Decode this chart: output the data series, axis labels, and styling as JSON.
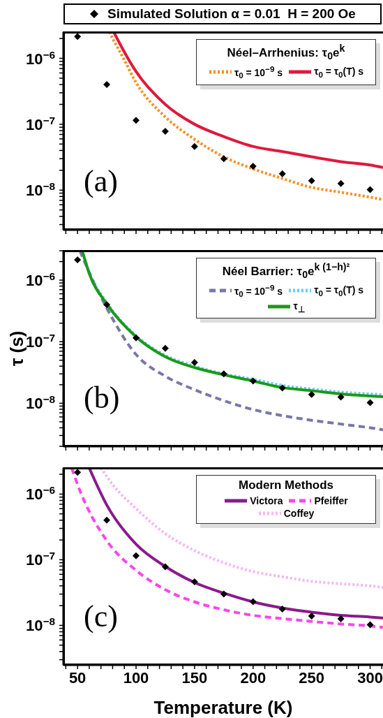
{
  "chart_data": [
    {
      "type": "line",
      "legend_title": "Néel–Arrhenius: τ$_{0}$e$^{k}$",
      "legend": "top right",
      "log": "y",
      "tick_labels": "y",
      "annotations": [
        "(a)"
      ],
      "xlim": [
        38,
        311
      ],
      "xticks": [
        {
          "value": 40,
          "label": null
        },
        50,
        {
          "value": 60,
          "label": null
        },
        {
          "value": 70,
          "label": null
        },
        {
          "value": 80,
          "label": null
        },
        {
          "value": 90,
          "label": null
        },
        100,
        {
          "value": 110,
          "label": null
        },
        {
          "value": 120,
          "label": null
        },
        {
          "value": 130,
          "label": null
        },
        {
          "value": 140,
          "label": null
        },
        150,
        {
          "value": 160,
          "label": null
        },
        {
          "value": 170,
          "label": null
        },
        {
          "value": 180,
          "label": null
        },
        {
          "value": 190,
          "label": null
        },
        200,
        {
          "value": 210,
          "label": null
        },
        {
          "value": 220,
          "label": null
        },
        {
          "value": 230,
          "label": null
        },
        {
          "value": 240,
          "label": null
        },
        250,
        {
          "value": 260,
          "label": null
        },
        {
          "value": 270,
          "label": null
        },
        {
          "value": 280,
          "label": null
        },
        {
          "value": 290,
          "label": null
        },
        300,
        {
          "value": 310,
          "label": null
        }
      ],
      "ylim": [
        2.5e-09,
        2.5e-06
      ],
      "yticks": [
        {
          "value": 3e-09,
          "label": null
        },
        {
          "value": 4e-09,
          "label": null
        },
        {
          "value": 5e-09,
          "label": null
        },
        {
          "value": 6e-09,
          "label": null
        },
        {
          "value": 7e-09,
          "label": null
        },
        {
          "value": 8e-09,
          "label": null
        },
        {
          "value": 9e-09,
          "label": null
        },
        {
          "value": 1e-08,
          "label": "10$^{−8}$"
        },
        {
          "value": 2e-08,
          "label": null
        },
        {
          "value": 3e-08,
          "label": null
        },
        {
          "value": 4e-08,
          "label": null
        },
        {
          "value": 5e-08,
          "label": null
        },
        {
          "value": 6e-08,
          "label": null
        },
        {
          "value": 7e-08,
          "label": null
        },
        {
          "value": 8e-08,
          "label": null
        },
        {
          "value": 9e-08,
          "label": null
        },
        {
          "value": 1e-07,
          "label": "10$^{−7}$"
        },
        {
          "value": 2e-07,
          "label": null
        },
        {
          "value": 3e-07,
          "label": null
        },
        {
          "value": 4e-07,
          "label": null
        },
        {
          "value": 5e-07,
          "label": null
        },
        {
          "value": 6e-07,
          "label": null
        },
        {
          "value": 7e-07,
          "label": null
        },
        {
          "value": 8e-07,
          "label": null
        },
        {
          "value": 9e-07,
          "label": null
        },
        {
          "value": 1e-06,
          "label": "10$^{−6}$"
        },
        {
          "value": 2e-06,
          "label": null
        }
      ],
      "series": [
        {
          "name": "τ$_{0}$ = 10$^{−9}$ s",
          "color": "#ff8c1a",
          "line_style": "dotted",
          "x": [
            77,
            90,
            100,
            125,
            150,
            175,
            200,
            225,
            250,
            275,
            300,
            311
          ],
          "values": [
            2.5e-06,
            9.4e-07,
            4.3e-07,
            1.29e-07,
            5.9e-08,
            3.2e-08,
            2.1e-08,
            1.5e-08,
            1.1e-08,
            9.3e-09,
            7.8e-09,
            7.2e-09
          ]
        },
        {
          "name": "τ$_{0}$ = τ$_{0}$(T) s",
          "color": "#e0183c",
          "line_style": "solid",
          "x": [
            81,
            90,
            100,
            125,
            150,
            175,
            200,
            225,
            250,
            275,
            300,
            311
          ],
          "values": [
            2.5e-06,
            1.25e-06,
            6.3e-07,
            2e-07,
            1e-07,
            6.5e-08,
            4.6e-08,
            3.85e-08,
            3.2e-08,
            2.7e-08,
            2.4e-08,
            2.2e-08
          ]
        },
        {
          "type": "scatter",
          "name": "Simulated Solution α = 0.01  H = 200 Oe",
          "color": "#000000",
          "marker": "diamond",
          "x": [
            50,
            75,
            100,
            125,
            150,
            175,
            200,
            225,
            250,
            275,
            300
          ],
          "values": [
            2.14e-06,
            4e-07,
            1.15e-07,
            7.8e-08,
            4.6e-08,
            3e-08,
            2.3e-08,
            1.77e-08,
            1.39e-08,
            1.26e-08,
            1.02e-08
          ]
        }
      ]
    },
    {
      "type": "line",
      "legend_title": "Néel Barrier: τ$_{0}$e$^{k (1−h)²}$",
      "legend": "top right",
      "log": "y",
      "tick_labels": "y",
      "ylabel": "τ  (s)",
      "annotations": [
        "(b)"
      ],
      "xlim": [
        38,
        311
      ],
      "xticks": [
        {
          "value": 40,
          "label": null
        },
        50,
        {
          "value": 60,
          "label": null
        },
        {
          "value": 70,
          "label": null
        },
        {
          "value": 80,
          "label": null
        },
        {
          "value": 90,
          "label": null
        },
        100,
        {
          "value": 110,
          "label": null
        },
        {
          "value": 120,
          "label": null
        },
        {
          "value": 130,
          "label": null
        },
        {
          "value": 140,
          "label": null
        },
        150,
        {
          "value": 160,
          "label": null
        },
        {
          "value": 170,
          "label": null
        },
        {
          "value": 180,
          "label": null
        },
        {
          "value": 190,
          "label": null
        },
        200,
        {
          "value": 210,
          "label": null
        },
        {
          "value": 220,
          "label": null
        },
        {
          "value": 230,
          "label": null
        },
        {
          "value": 240,
          "label": null
        },
        250,
        {
          "value": 260,
          "label": null
        },
        {
          "value": 270,
          "label": null
        },
        {
          "value": 280,
          "label": null
        },
        {
          "value": 290,
          "label": null
        },
        300,
        {
          "value": 310,
          "label": null
        }
      ],
      "ylim": [
        2e-09,
        3e-06
      ],
      "yticks": [
        {
          "value": 2e-09,
          "label": null
        },
        {
          "value": 3e-09,
          "label": null
        },
        {
          "value": 4e-09,
          "label": null
        },
        {
          "value": 5e-09,
          "label": null
        },
        {
          "value": 6e-09,
          "label": null
        },
        {
          "value": 7e-09,
          "label": null
        },
        {
          "value": 8e-09,
          "label": null
        },
        {
          "value": 9e-09,
          "label": null
        },
        {
          "value": 1e-08,
          "label": "10$^{−8}$"
        },
        {
          "value": 2e-08,
          "label": null
        },
        {
          "value": 3e-08,
          "label": null
        },
        {
          "value": 4e-08,
          "label": null
        },
        {
          "value": 5e-08,
          "label": null
        },
        {
          "value": 6e-08,
          "label": null
        },
        {
          "value": 7e-08,
          "label": null
        },
        {
          "value": 8e-08,
          "label": null
        },
        {
          "value": 9e-08,
          "label": null
        },
        {
          "value": 1e-07,
          "label": "10$^{−7}$"
        },
        {
          "value": 2e-07,
          "label": null
        },
        {
          "value": 3e-07,
          "label": null
        },
        {
          "value": 4e-07,
          "label": null
        },
        {
          "value": 5e-07,
          "label": null
        },
        {
          "value": 6e-07,
          "label": null
        },
        {
          "value": 7e-07,
          "label": null
        },
        {
          "value": 8e-07,
          "label": null
        },
        {
          "value": 9e-07,
          "label": null
        },
        {
          "value": 1e-06,
          "label": "10$^{−6}$"
        },
        {
          "value": 2e-06,
          "label": null
        },
        {
          "value": 3e-06,
          "label": null
        }
      ],
      "series": [
        {
          "name": "τ$_{0}$ = 10$^{−9}$ s",
          "color": "#7878a8",
          "line_style": "dashed",
          "x": [
            52,
            60,
            75,
            100,
            125,
            150,
            175,
            200,
            225,
            250,
            275,
            300,
            311
          ],
          "values": [
            3e-06,
            1.34e-06,
            3.5e-07,
            6.2e-08,
            2.75e-08,
            1.66e-08,
            1.1e-08,
            7.9e-09,
            6.3e-09,
            5.3e-09,
            4.6e-09,
            4e-09,
            3.7e-09
          ]
        },
        {
          "name": "τ$_{0}$ = τ$_{0}$(T) s",
          "color": "#66ccff",
          "line_style": "dotted",
          "x": [
            54,
            60,
            75,
            100,
            125,
            150,
            175,
            200,
            225,
            250,
            275,
            300,
            311
          ],
          "values": [
            3e-06,
            1.35e-06,
            4.3e-07,
            1.25e-07,
            6e-08,
            4e-08,
            3e-08,
            2.45e-08,
            1.95e-08,
            1.7e-08,
            1.52e-08,
            1.42e-08,
            1.38e-08
          ]
        },
        {
          "name": "τ$_{⊥}$",
          "color": "#1a9a1a",
          "line_style": "solid",
          "x": [
            54,
            60,
            75,
            100,
            125,
            150,
            175,
            200,
            225,
            250,
            275,
            300,
            311
          ],
          "values": [
            3e-06,
            1.28e-06,
            4.1e-07,
            1.2e-07,
            5.7e-08,
            3.8e-08,
            2.9e-08,
            2.3e-08,
            1.8e-08,
            1.6e-08,
            1.42e-08,
            1.31e-08,
            1.28e-08
          ]
        },
        {
          "type": "scatter",
          "color": "#000000",
          "marker": "diamond",
          "x": [
            50,
            75,
            100,
            125,
            150,
            175,
            200,
            225,
            250,
            275,
            300
          ],
          "values": [
            2.14e-06,
            4e-07,
            1.15e-07,
            7.8e-08,
            4.6e-08,
            3e-08,
            2.3e-08,
            1.77e-08,
            1.39e-08,
            1.26e-08,
            1.02e-08
          ]
        }
      ]
    },
    {
      "type": "line",
      "legend_title": "Modern Methods",
      "legend": "top right",
      "log": "y",
      "xlabel": "Temperature (K)",
      "annotations": [
        "(c)"
      ],
      "xlim": [
        38,
        311
      ],
      "xticks": [
        {
          "value": 40,
          "label": null
        },
        50,
        {
          "value": 60,
          "label": null
        },
        {
          "value": 70,
          "label": null
        },
        {
          "value": 80,
          "label": null
        },
        {
          "value": 90,
          "label": null
        },
        100,
        {
          "value": 110,
          "label": null
        },
        {
          "value": 120,
          "label": null
        },
        {
          "value": 130,
          "label": null
        },
        {
          "value": 140,
          "label": null
        },
        150,
        {
          "value": 160,
          "label": null
        },
        {
          "value": 170,
          "label": null
        },
        {
          "value": 180,
          "label": null
        },
        {
          "value": 190,
          "label": null
        },
        200,
        {
          "value": 210,
          "label": null
        },
        {
          "value": 220,
          "label": null
        },
        {
          "value": 230,
          "label": null
        },
        {
          "value": 240,
          "label": null
        },
        250,
        {
          "value": 260,
          "label": null
        },
        {
          "value": 270,
          "label": null
        },
        {
          "value": 280,
          "label": null
        },
        {
          "value": 290,
          "label": null
        },
        300,
        {
          "value": 310,
          "label": null
        }
      ],
      "ylim": [
        2.5e-09,
        2.5e-06
      ],
      "yticks": [
        {
          "value": 3e-09,
          "label": null
        },
        {
          "value": 4e-09,
          "label": null
        },
        {
          "value": 5e-09,
          "label": null
        },
        {
          "value": 6e-09,
          "label": null
        },
        {
          "value": 7e-09,
          "label": null
        },
        {
          "value": 8e-09,
          "label": null
        },
        {
          "value": 9e-09,
          "label": null
        },
        {
          "value": 1e-08,
          "label": "10$^{−8}$"
        },
        {
          "value": 2e-08,
          "label": null
        },
        {
          "value": 3e-08,
          "label": null
        },
        {
          "value": 4e-08,
          "label": null
        },
        {
          "value": 5e-08,
          "label": null
        },
        {
          "value": 6e-08,
          "label": null
        },
        {
          "value": 7e-08,
          "label": null
        },
        {
          "value": 8e-08,
          "label": null
        },
        {
          "value": 9e-08,
          "label": null
        },
        {
          "value": 1e-07,
          "label": "10$^{−7}$"
        },
        {
          "value": 2e-07,
          "label": null
        },
        {
          "value": 3e-07,
          "label": null
        },
        {
          "value": 4e-07,
          "label": null
        },
        {
          "value": 5e-07,
          "label": null
        },
        {
          "value": 6e-07,
          "label": null
        },
        {
          "value": 7e-07,
          "label": null
        },
        {
          "value": 8e-07,
          "label": null
        },
        {
          "value": 9e-07,
          "label": null
        },
        {
          "value": 1e-06,
          "label": "10$^{−6}$"
        },
        {
          "value": 2e-06,
          "label": null
        }
      ],
      "series": [
        {
          "name": "Victora",
          "color": "#8b1a8b",
          "line_style": "solid",
          "x": [
            60,
            75,
            100,
            125,
            150,
            175,
            200,
            225,
            250,
            275,
            300,
            311
          ],
          "values": [
            2.5e-06,
            6.8e-07,
            1.73e-07,
            7.9e-08,
            4.5e-08,
            3.1e-08,
            2.28e-08,
            1.84e-08,
            1.59e-08,
            1.42e-08,
            1.34e-08,
            1.29e-08
          ]
        },
        {
          "name": "Pfeiffer",
          "color": "#ff44ee",
          "line_style": "dashed",
          "x": [
            45,
            50,
            75,
            100,
            125,
            150,
            175,
            200,
            225,
            250,
            275,
            300,
            311
          ],
          "values": [
            2.5e-06,
            1.4e-06,
            1.95e-07,
            6.9e-08,
            3.5e-08,
            2.28e-08,
            1.73e-08,
            1.42e-08,
            1.27e-08,
            1.15e-08,
            1.05e-08,
            9.8e-09,
            9.3e-09
          ]
        },
        {
          "name": "Coffey",
          "color": "#f5b8f0",
          "line_style": "dotted",
          "x": [
            70,
            80,
            100,
            125,
            150,
            175,
            200,
            225,
            250,
            275,
            300,
            311
          ],
          "values": [
            2.5e-06,
            1.4e-06,
            6e-07,
            2.5e-07,
            1.38e-07,
            9e-08,
            6.6e-08,
            5.5e-08,
            4.7e-08,
            4.3e-08,
            4e-08,
            3.8e-08
          ]
        },
        {
          "type": "scatter",
          "color": "#000000",
          "marker": "diamond",
          "x": [
            50,
            75,
            100,
            125,
            150,
            175,
            200,
            225,
            250,
            275,
            300
          ],
          "values": [
            2.14e-06,
            4e-07,
            1.15e-07,
            7.8e-08,
            4.6e-08,
            3e-08,
            2.3e-08,
            1.77e-08,
            1.39e-08,
            1.26e-08,
            1.02e-08
          ]
        }
      ]
    }
  ]
}
